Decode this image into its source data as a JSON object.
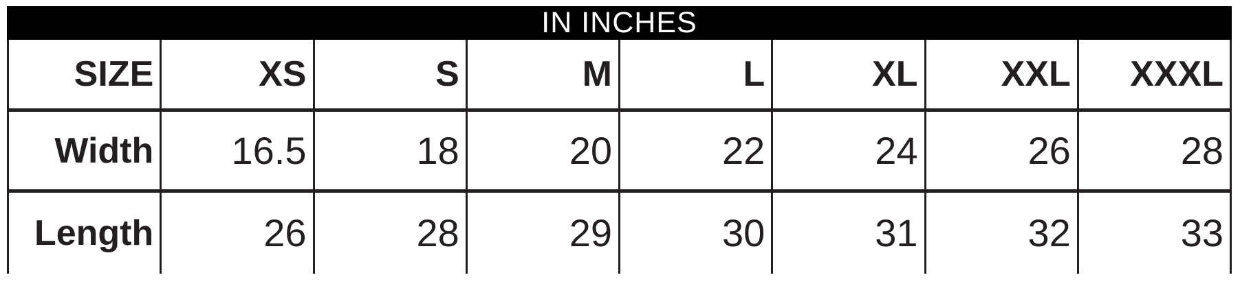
{
  "chart_data": {
    "type": "table",
    "title": "IN INCHES",
    "columns": [
      "SIZE",
      "XS",
      "S",
      "M",
      "L",
      "XL",
      "XXL",
      "XXXL"
    ],
    "rows": [
      [
        "Width",
        16.5,
        18,
        20,
        22,
        24,
        26,
        28
      ],
      [
        "Length",
        26,
        28,
        29,
        30,
        31,
        32,
        33
      ]
    ]
  },
  "table": {
    "title": "IN INCHES",
    "columns": [
      "SIZE",
      "XS",
      "S",
      "M",
      "L",
      "XL",
      "XXL",
      "XXXL"
    ],
    "rows": [
      {
        "label": "Width",
        "values": [
          "16.5",
          "18",
          "20",
          "22",
          "24",
          "26",
          "28"
        ]
      },
      {
        "label": "Length",
        "values": [
          "26",
          "28",
          "29",
          "30",
          "31",
          "32",
          "33"
        ]
      }
    ],
    "colors": {
      "band_bg": "#000000",
      "band_text": "#ffffff",
      "border": "#231f20",
      "text": "#231f20",
      "page_bg": "#ffffff"
    }
  }
}
